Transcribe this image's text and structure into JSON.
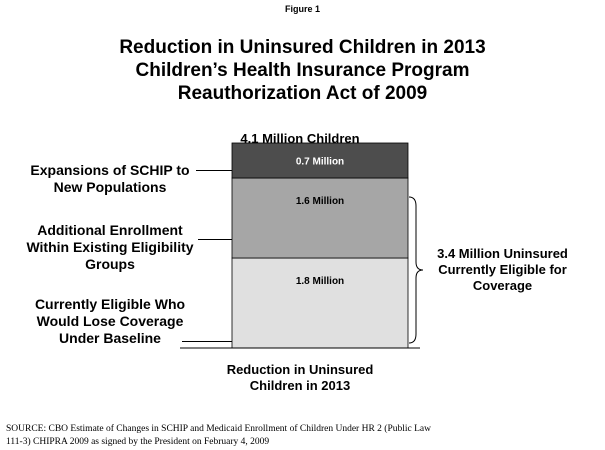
{
  "figure_label": "Figure 1",
  "title_lines": [
    "Reduction in Uninsured Children in 2013",
    "Children’s Health Insurance Program",
    "Reauthorization Act of 2009"
  ],
  "total_label": "4.1 Million Children",
  "x_axis_label_lines": [
    "Reduction in Uninsured",
    "Children in 2013"
  ],
  "segment_labels": [
    [
      "Expansions of SCHIP to",
      "New Populations"
    ],
    [
      "Additional Enrollment",
      "Within Existing Eligibility",
      "Groups"
    ],
    [
      "Currently Eligible Who",
      "Would Lose Coverage",
      "Under Baseline"
    ]
  ],
  "brace_label_lines": [
    "3.4 Million Uninsured",
    "Currently Eligible for",
    "Coverage"
  ],
  "source_lines": [
    "SOURCE:  CBO Estimate of Changes in SCHIP and Medicaid Enrollment of Children Under HR 2 (Public Law",
    "111-3) CHIPRA 2009 as signed by the President on February 4, 2009"
  ],
  "colors": {
    "top_segment": "#4d4d4d",
    "middle_segment": "#a6a6a6",
    "bottom_segment": "#e0e0e0"
  },
  "chart_data": {
    "type": "bar",
    "stacked": true,
    "categories": [
      "Reduction in Uninsured Children in 2013"
    ],
    "series": [
      {
        "name": "Currently Eligible Who Would Lose Coverage Under Baseline",
        "values": [
          1.8
        ],
        "label": "1.8 Million",
        "color": "#e0e0e0"
      },
      {
        "name": "Additional Enrollment Within Existing Eligibility Groups",
        "values": [
          1.6
        ],
        "label": "1.6 Million",
        "color": "#a6a6a6"
      },
      {
        "name": "Expansions of SCHIP to New Populations",
        "values": [
          0.7
        ],
        "label": "0.7 Million",
        "color": "#4d4d4d"
      }
    ],
    "total": 4.1,
    "ylim": [
      0,
      4.1
    ]
  }
}
